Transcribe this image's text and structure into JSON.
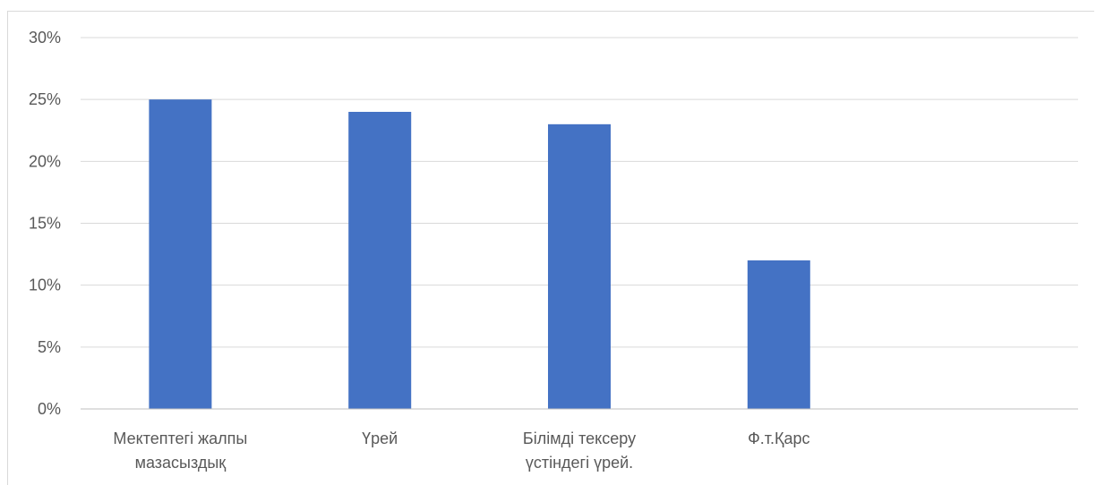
{
  "chart_data": {
    "type": "bar",
    "categories": [
      [
        "Мектептегі жалпы",
        "мазасыздық"
      ],
      [
        "Үрей"
      ],
      [
        "Білімді тексеру",
        "үстіндегі үрей."
      ],
      [
        "Ф.т.Қарс"
      ],
      [
        ""
      ]
    ],
    "values": [
      25,
      24,
      23,
      12,
      null
    ],
    "ylim": [
      0,
      30
    ],
    "yticks": [
      "0%",
      "5%",
      "10%",
      "15%",
      "20%",
      "25%",
      "30%"
    ],
    "ytick_values": [
      0,
      5,
      10,
      15,
      20,
      25,
      30
    ],
    "grid": true,
    "legend": "none",
    "title": "",
    "xlabel": "",
    "ylabel": "",
    "colors": {
      "bar": "#4472c4",
      "gridline": "#d9d9d9",
      "axis": "#bfbfbf",
      "text": "#595959"
    }
  }
}
